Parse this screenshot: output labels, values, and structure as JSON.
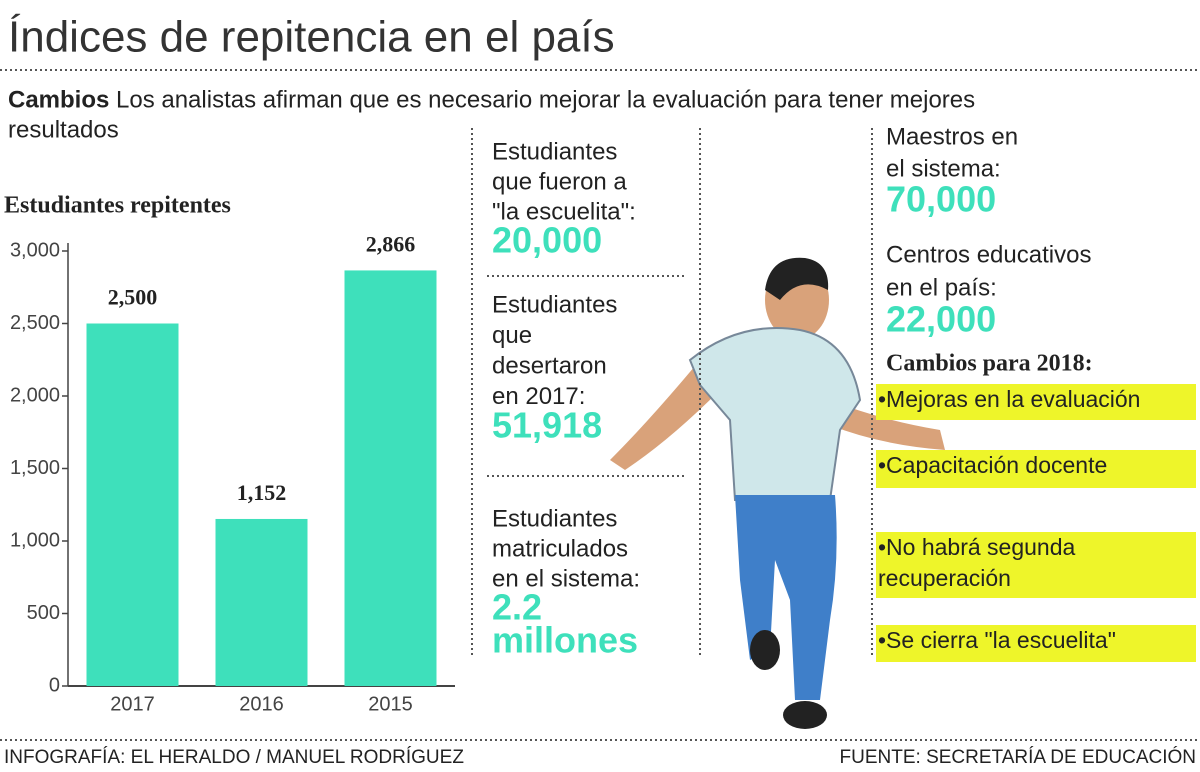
{
  "header": {
    "title": "Índices de repitencia en el país",
    "lead_bold": "Cambios",
    "lead_lines": [
      "Los analistas afirman que es necesario mejorar la evaluación para tener mejores",
      "resultados"
    ]
  },
  "chart_data": {
    "type": "bar",
    "title": "Estudiantes repitentes",
    "categories": [
      "2017",
      "2016",
      "2015"
    ],
    "values": [
      2500,
      1152,
      2866
    ],
    "value_labels": [
      "2,500",
      "1,152",
      "2,866"
    ],
    "color": "#3ee0bb",
    "ylim": [
      0,
      3000
    ],
    "yticks": [
      0,
      500,
      {
        "value": 1000,
        "label": "1,000"
      },
      {
        "value": 1500,
        "label": "1,500"
      },
      {
        "value": 2000,
        "label": "2,000"
      },
      {
        "value": 2500,
        "label": "2,500"
      },
      {
        "value": 3000,
        "label": "3,000"
      }
    ],
    "grid": false
  },
  "stats": [
    {
      "label": [
        "Estudiantes",
        "que fueron a",
        "\"la escuelita\":"
      ],
      "value": [
        "20,000"
      ]
    },
    {
      "label": [
        "Estudiantes",
        "que",
        "desertaron",
        "en 2017:"
      ],
      "value": [
        "51,918"
      ]
    },
    {
      "label": [
        "Estudiantes",
        "matriculados",
        "en el sistema:"
      ],
      "value": [
        "2.2",
        "millones"
      ]
    },
    {
      "label": [
        "Maestros en",
        "el sistema:"
      ],
      "value": [
        "70,000"
      ]
    },
    {
      "label": [
        "Centros educativos",
        "en el país:"
      ],
      "value": [
        "22,000"
      ]
    }
  ],
  "changes": {
    "title": "Cambios para 2018:",
    "items": [
      [
        "•Mejoras en la evaluación"
      ],
      [
        "•Capacitación docente"
      ],
      [
        "•No habrá segunda",
        "recuperación"
      ],
      [
        "•Se cierra \"la escuelita\""
      ]
    ]
  },
  "footer": {
    "credit": "INFOGRAFÍA: EL HERALDO / MANUEL RODRÍGUEZ",
    "source": "FUENTE: SECRETARÍA DE EDUCACIÓN"
  }
}
